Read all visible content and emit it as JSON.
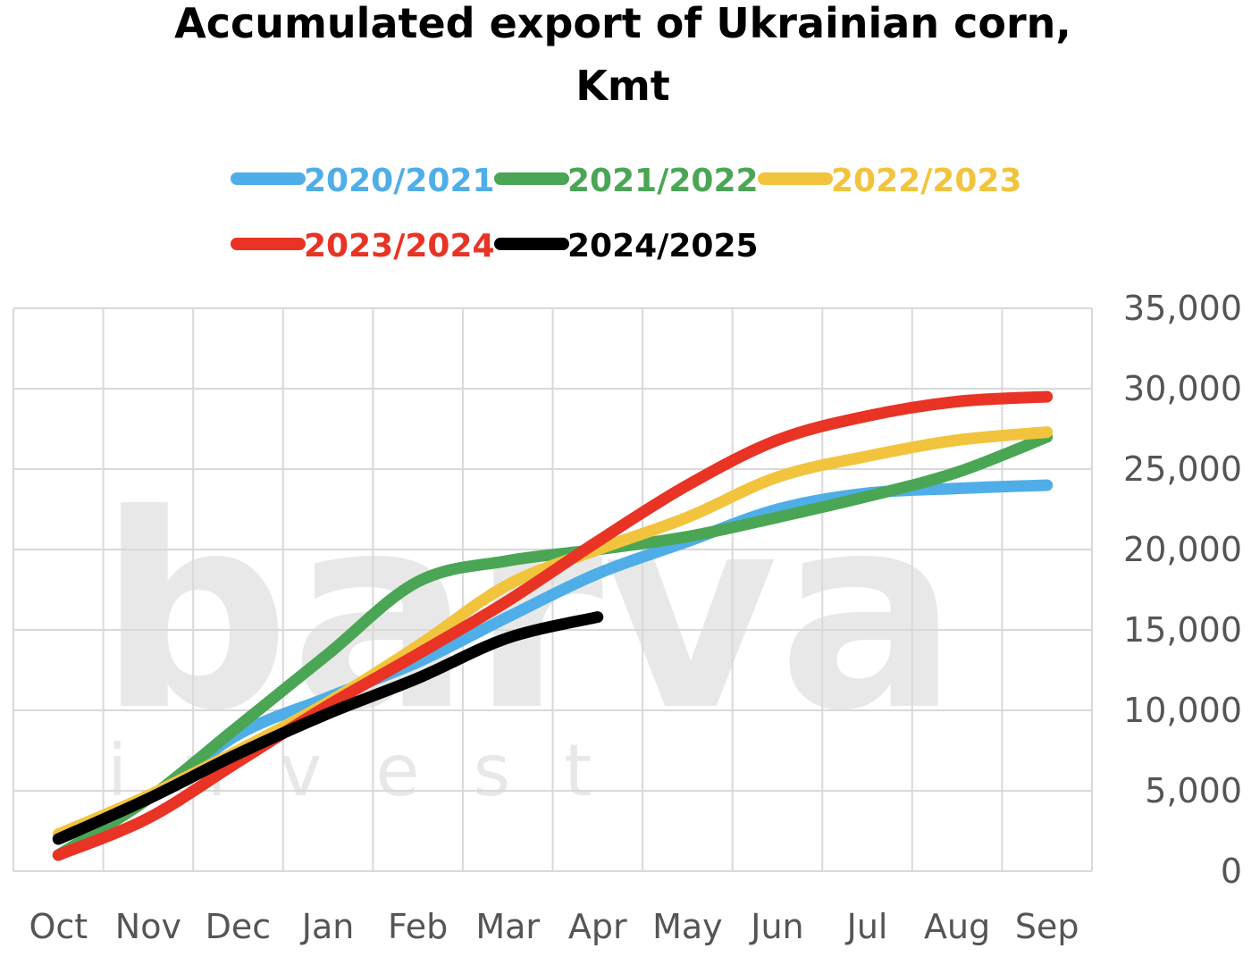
{
  "chart_data": {
    "type": "line",
    "title": [
      "Accumulated export of Ukrainian corn,",
      "Kmt"
    ],
    "watermark": "barva",
    "watermark_sub": "invest",
    "categories": [
      "Oct",
      "Nov",
      "Dec",
      "Jan",
      "Feb",
      "Mar",
      "Apr",
      "May",
      "Jun",
      "Jul",
      "Aug",
      "Sep"
    ],
    "series": [
      {
        "name": "2020/2021",
        "color": "#4faee8",
        "values": [
          2000,
          4500,
          8500,
          10800,
          13000,
          15800,
          18500,
          20500,
          22500,
          23500,
          23800,
          24000
        ]
      },
      {
        "name": "2021/2022",
        "color": "#4aa655",
        "values": [
          1000,
          4500,
          9000,
          13500,
          18000,
          19300,
          20000,
          20800,
          22000,
          23300,
          24800,
          27000
        ]
      },
      {
        "name": "2022/2023",
        "color": "#f2c43d",
        "values": [
          2300,
          4700,
          7500,
          10500,
          14000,
          17800,
          20000,
          22000,
          24500,
          25800,
          26800,
          27300
        ]
      },
      {
        "name": "2023/2024",
        "color": "#e83325",
        "values": [
          1000,
          3300,
          6800,
          10300,
          13500,
          16800,
          20500,
          24000,
          26800,
          28300,
          29200,
          29500
        ]
      },
      {
        "name": "2024/2025",
        "color": "#000000",
        "values": [
          2000,
          4500,
          7300,
          9800,
          12000,
          14500,
          15800,
          null,
          null,
          null,
          null,
          null
        ]
      }
    ],
    "ylim": [
      0,
      35000
    ],
    "yticks": [
      0,
      {
        "value": 5000,
        "label": "5,000"
      },
      {
        "value": 10000,
        "label": "10,000"
      },
      {
        "value": 15000,
        "label": "15,000"
      },
      {
        "value": 20000,
        "label": "20,000"
      },
      {
        "value": 25000,
        "label": "25,000"
      },
      {
        "value": 30000,
        "label": "30,000"
      },
      {
        "value": 35000,
        "label": "35,000"
      }
    ],
    "grid": true,
    "legend": "top"
  }
}
